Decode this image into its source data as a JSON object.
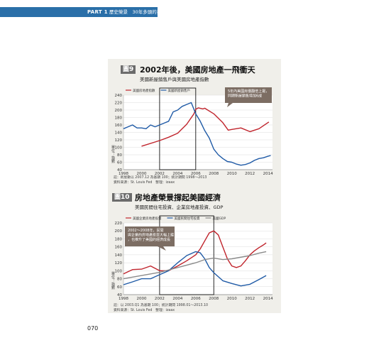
{
  "header": {
    "part": "PART 1",
    "chapter": "歷史榮景　30年多頭的亮麗軌跡"
  },
  "page_number": "070",
  "figures": [
    {
      "badge": "圖9",
      "title": "2002年後，美國房地產一飛衝天",
      "subtitle": "美國新屋銷售戶與美國房地產指數",
      "note": "註：新屋數以 2007.12 為基期 100；統計期間 1998～2013",
      "source": "資料來源：St. Louis Fed　整理：izaax"
    },
    {
      "badge": "圖10",
      "title": "房地產榮景撐起美國經濟",
      "subtitle": "美國民間住宅投資、企業房地產投資、GDP",
      "note": "註：以 2003.Q1 為基期 100；統計期間 1998.01～2013.10",
      "source": "資料來源：St. Louis Fed　整理：izaax"
    }
  ],
  "chart_data": [
    {
      "type": "line",
      "ylabel": "單位：指數",
      "ylim": [
        40,
        240
      ],
      "yticks": [
        40,
        60,
        80,
        100,
        120,
        140,
        160,
        180,
        200,
        220,
        240
      ],
      "xticks": [
        "1998",
        "2000",
        "2002",
        "2004",
        "2006",
        "2008",
        "2010",
        "2012",
        "2014"
      ],
      "xlim": [
        1998,
        2014.5
      ],
      "legend_position": "top-left",
      "annotation": "5年內美國房價翻倍上揚，同期新屋銷售增加6成",
      "highlight_range": [
        2002,
        2006
      ],
      "series": [
        {
          "name": "美國房地產指數",
          "color": "#c0242c",
          "x": [
            2000,
            2002,
            2003,
            2004,
            2005,
            2005.8,
            2006,
            2006.3,
            2006.8,
            2007,
            2008,
            2009,
            2009.6,
            2010,
            2011,
            2012,
            2013,
            2014.1
          ],
          "y": [
            103,
            118,
            127,
            138,
            162,
            190,
            202,
            206,
            203,
            205,
            190,
            166,
            146,
            148,
            152,
            142,
            150,
            168
          ]
        },
        {
          "name": "美國新屋銷售戶",
          "color": "#1f5aa6",
          "x": [
            1998,
            1998.5,
            1999,
            1999.5,
            2000,
            2000.5,
            2001,
            2001.5,
            2002,
            2002.5,
            2003,
            2003.5,
            2004,
            2004.5,
            2005,
            2005.5,
            2006,
            2006.5,
            2007,
            2007.5,
            2008,
            2008.5,
            2009,
            2009.5,
            2010,
            2010.5,
            2011,
            2011.5,
            2012,
            2012.5,
            2013,
            2013.5,
            2014,
            2014.3
          ],
          "y": [
            150,
            155,
            160,
            152,
            152,
            150,
            160,
            155,
            160,
            165,
            170,
            195,
            200,
            210,
            215,
            220,
            190,
            170,
            145,
            125,
            95,
            80,
            70,
            62,
            60,
            55,
            52,
            54,
            58,
            65,
            70,
            72,
            76,
            78
          ]
        }
      ]
    },
    {
      "type": "line",
      "ylabel": "單位：指數",
      "ylim": [
        40,
        220
      ],
      "yticks": [
        40,
        60,
        80,
        100,
        120,
        140,
        160,
        180,
        200,
        220
      ],
      "xticks": [
        "1998",
        "2000",
        "2002",
        "2004",
        "2006",
        "2008",
        "2010",
        "2012",
        "2014"
      ],
      "xlim": [
        1998,
        2014.5
      ],
      "legend_position": "top-left",
      "annotation": "2002～2008年，民間與企業的房地產投資大幅上揚，也推升了美國的經濟成長",
      "highlight_range": [
        2002,
        2008
      ],
      "series": [
        {
          "name": "美國企業房地產投資",
          "color": "#c0242c",
          "x": [
            1998,
            1999,
            2000,
            2001,
            2002,
            2003,
            2004,
            2005,
            2006,
            2006.5,
            2007,
            2007.5,
            2008,
            2008.5,
            2009,
            2009.5,
            2010,
            2010.5,
            2011,
            2011.5,
            2012,
            2012.5,
            2013,
            2013.5,
            2013.8
          ],
          "y": [
            92,
            103,
            104,
            112,
            100,
            100,
            112,
            125,
            140,
            155,
            175,
            195,
            200,
            190,
            160,
            130,
            112,
            108,
            112,
            125,
            140,
            150,
            158,
            165,
            170
          ]
        },
        {
          "name": "美國民間住宅投資",
          "color": "#1f5aa6",
          "x": [
            1998,
            1999,
            2000,
            2001,
            2002,
            2003,
            2004,
            2005,
            2006,
            2006.5,
            2007,
            2007.5,
            2008,
            2009,
            2010,
            2011,
            2012,
            2013,
            2013.8
          ],
          "y": [
            65,
            72,
            80,
            80,
            90,
            100,
            120,
            138,
            148,
            145,
            130,
            108,
            95,
            75,
            68,
            62,
            66,
            78,
            88
          ]
        },
        {
          "name": "美國GDP",
          "color": "#8a8a8a",
          "x": [
            1998,
            2000,
            2002,
            2004,
            2006,
            2007,
            2008,
            2009,
            2010,
            2012,
            2013,
            2013.8
          ],
          "y": [
            80,
            88,
            96,
            108,
            120,
            128,
            132,
            128,
            130,
            138,
            144,
            148
          ]
        }
      ]
    }
  ]
}
